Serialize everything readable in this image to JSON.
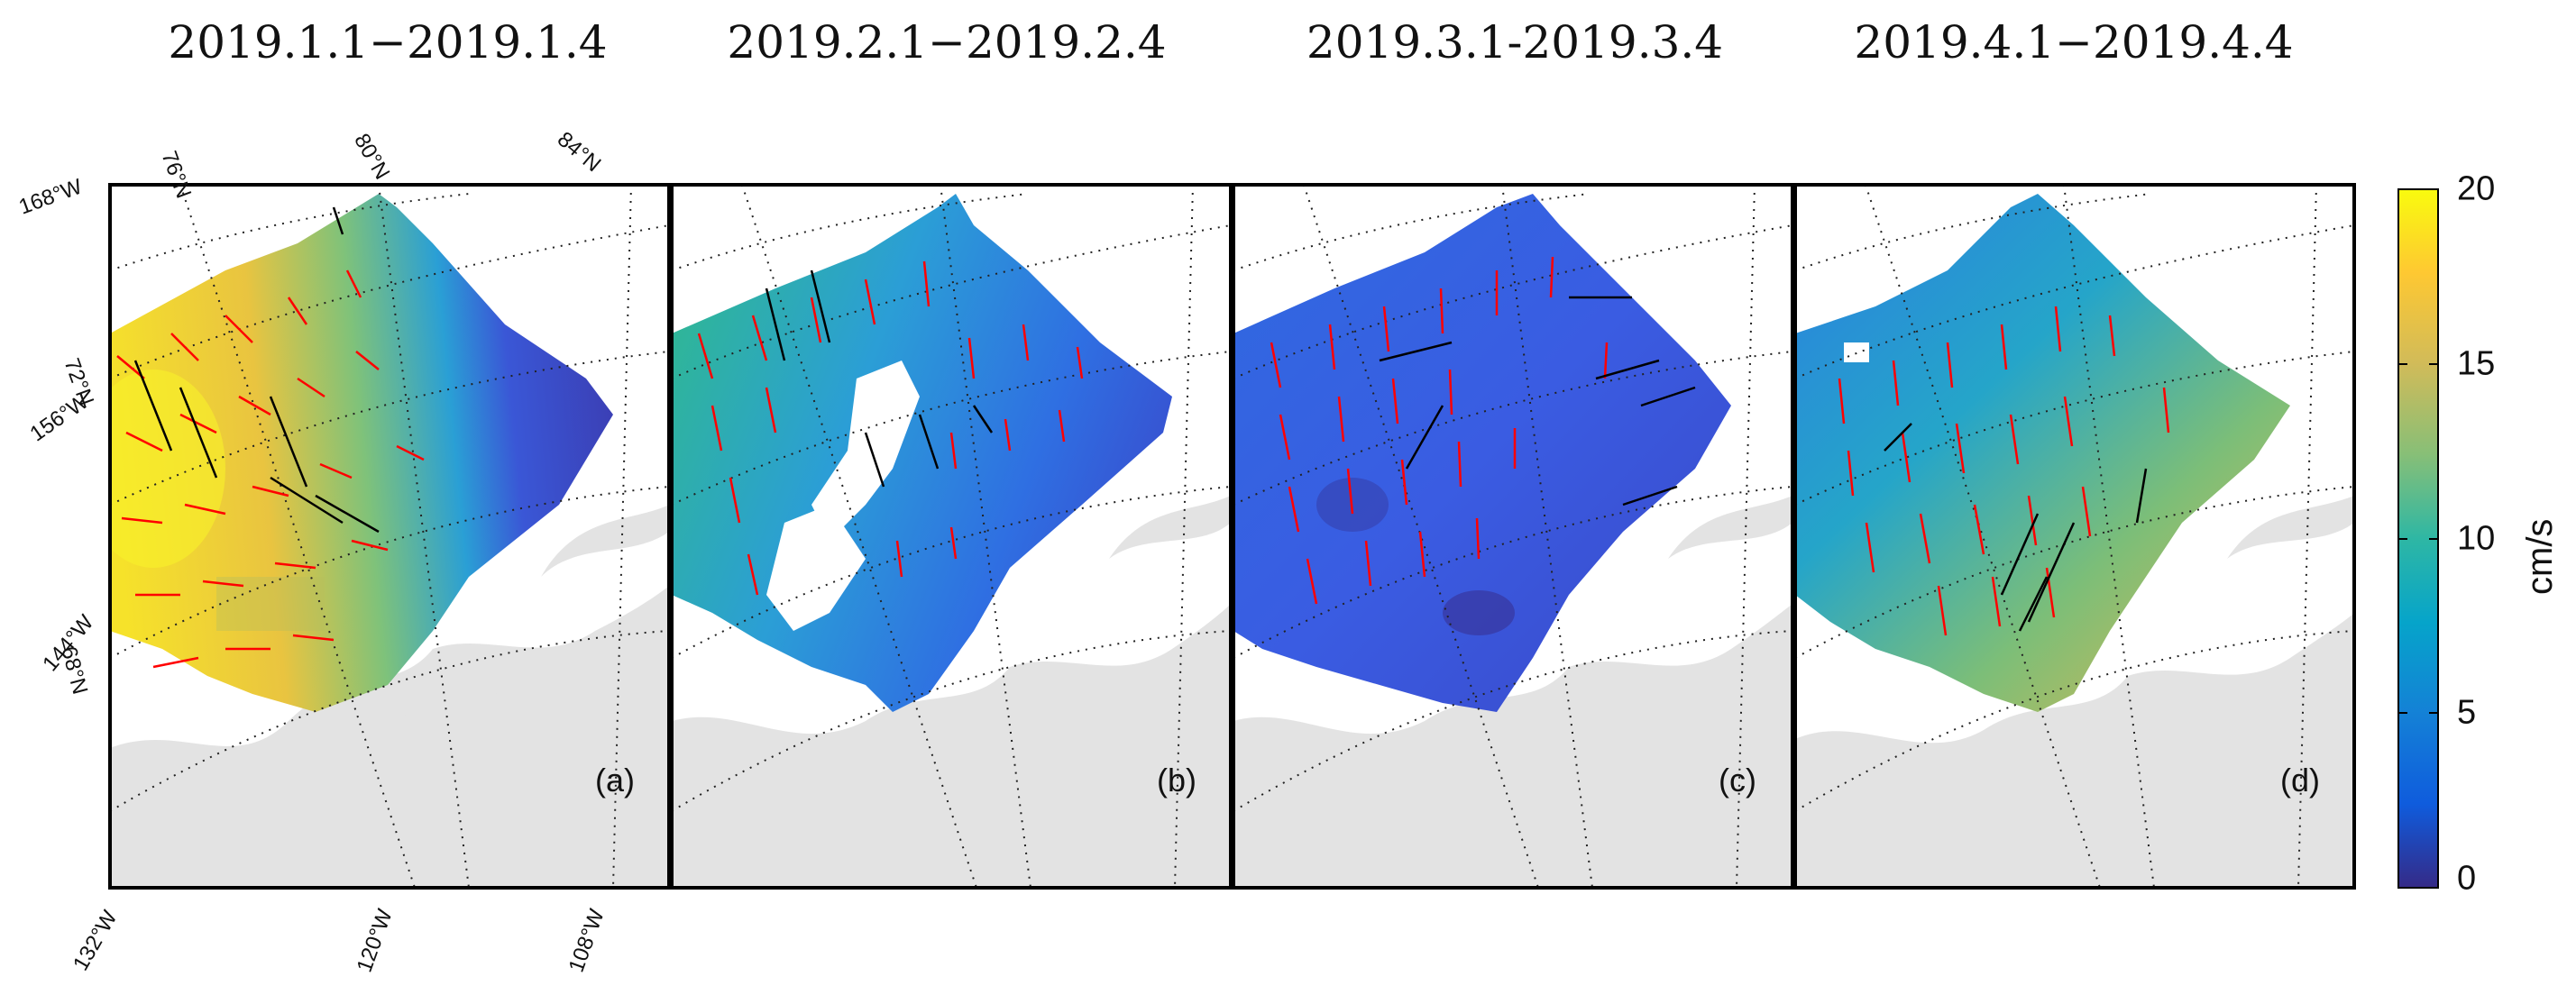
{
  "figure": {
    "panels": [
      {
        "id": "a",
        "title": "2019.1.1−2019.1.4",
        "letter": "(a)"
      },
      {
        "id": "b",
        "title": "2019.2.1−2019.2.4",
        "letter": "(b)"
      },
      {
        "id": "c",
        "title": "2019.3.1-2019.3.4",
        "letter": "(c)"
      },
      {
        "id": "d",
        "title": "2019.4.1−2019.4.4",
        "letter": "(d)"
      }
    ],
    "lat_labels": [
      "76°N",
      "80°N",
      "84°N",
      "72°N",
      "68°N"
    ],
    "lon_labels": [
      "168°W",
      "156°W",
      "144°W",
      "132°W",
      "120°W",
      "108°W"
    ],
    "colorbar": {
      "unit": "cm/s",
      "ticks": [
        "20",
        "15",
        "10",
        "5",
        "0"
      ],
      "range": [
        0,
        20
      ],
      "colormap": "parula"
    },
    "colors": {
      "land": "#e3e3e3",
      "arrow_red": "#ff0000",
      "arrow_black": "#000000"
    }
  }
}
